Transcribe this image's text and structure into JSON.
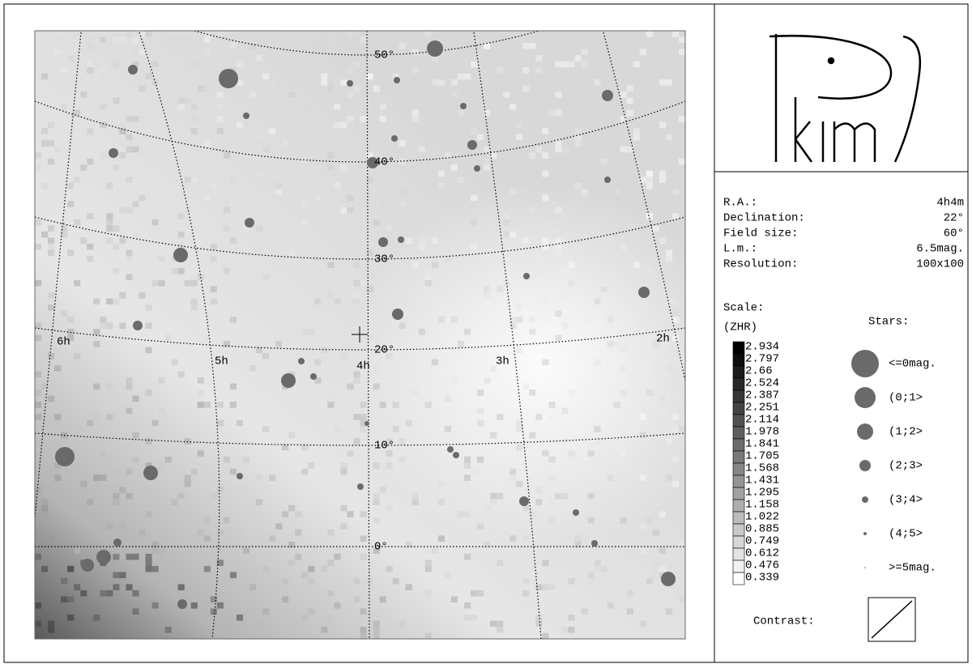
{
  "map": {
    "dec_labels": [
      "50°",
      "40°",
      "30°",
      "20°",
      "10°",
      "0°"
    ],
    "ra_labels": [
      "6h",
      "5h",
      "4h",
      "3h",
      "2h"
    ]
  },
  "info": {
    "rows": [
      [
        "R.A.:",
        "4h4m"
      ],
      [
        "Declination:",
        "22°"
      ],
      [
        "Field size:",
        "60°"
      ],
      [
        "L.m.:",
        "6.5mag."
      ],
      [
        "Resolution:",
        "100x100"
      ]
    ]
  },
  "scale": {
    "title": "Scale:",
    "unit": "(ZHR)",
    "labels": [
      "2.934",
      "2.797",
      "2.66",
      "2.524",
      "2.387",
      "2.251",
      "2.114",
      "1.978",
      "1.841",
      "1.705",
      "1.568",
      "1.431",
      "1.295",
      "1.158",
      "1.022",
      "0.885",
      "0.749",
      "0.612",
      "0.476",
      "0.339"
    ]
  },
  "stars": {
    "title": "Stars:",
    "labels": [
      "<=0mag.",
      "(0;1>",
      "(1;2>",
      "(2;3>",
      "(3;4>",
      "(4;5>",
      ">=5mag."
    ]
  },
  "contrast": "Contrast:"
}
